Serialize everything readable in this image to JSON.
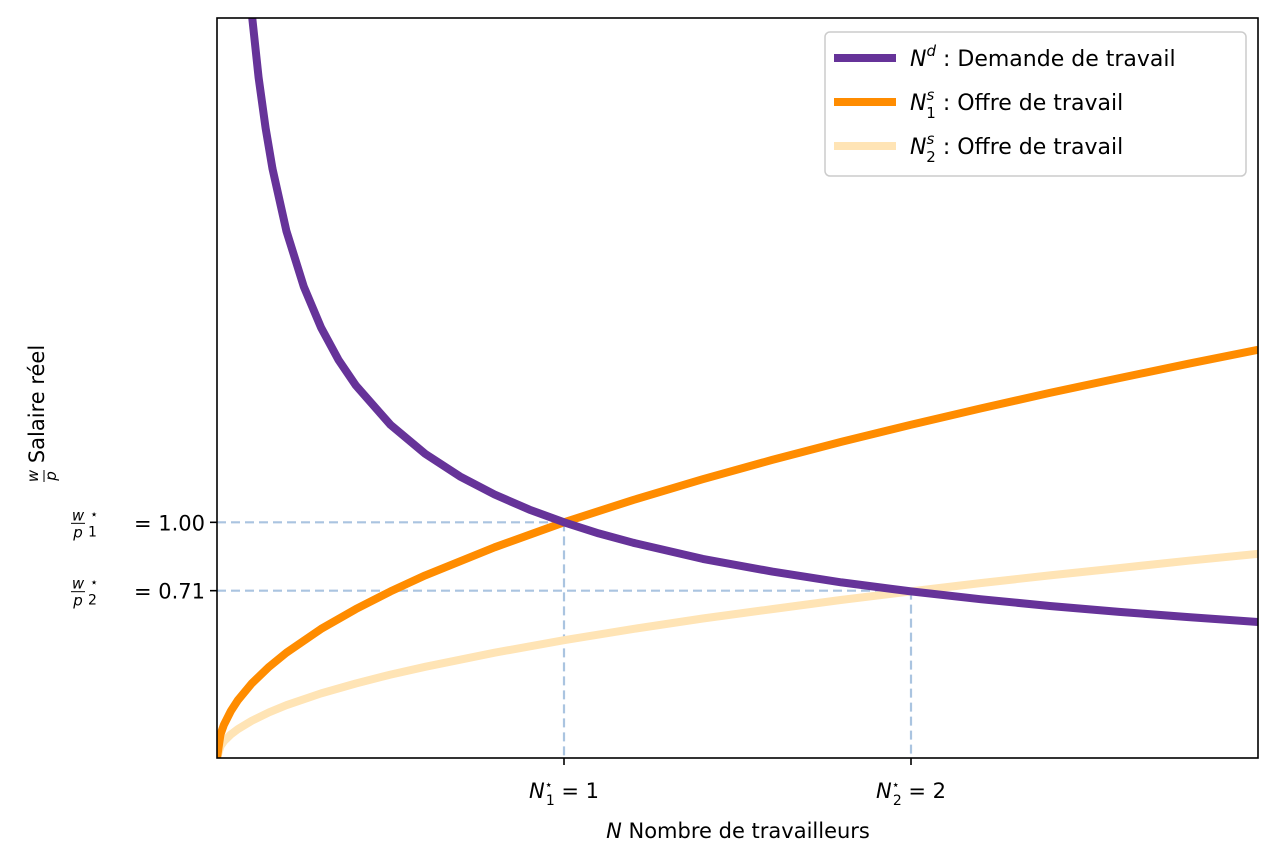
{
  "chart_data": {
    "type": "line",
    "xlabel": "Nombre de travailleurs",
    "xlabel_symbol": "N",
    "ylabel": "Salaire réel",
    "ylabel_symbol_num": "w",
    "ylabel_symbol_den": "p",
    "xlim": [
      0,
      3
    ],
    "ylim": [
      0,
      3.14
    ],
    "x_ticks": [
      {
        "value": 1,
        "symbol": "N",
        "sub": "1",
        "sup": "⋆",
        "text": " = 1"
      },
      {
        "value": 2,
        "symbol": "N",
        "sub": "2",
        "sup": "⋆",
        "text": " = 2"
      }
    ],
    "y_ticks": [
      {
        "value": 1.0,
        "num": "w",
        "den": "p",
        "sub": "1",
        "sup": "⋆",
        "text": " = 1.00"
      },
      {
        "value": 0.71,
        "num": "w",
        "den": "p",
        "sub": "2",
        "sup": "⋆",
        "text": " = 0.71"
      }
    ],
    "guides": [
      {
        "x": 1,
        "y": 1.0,
        "color": "#aac4e0"
      },
      {
        "x": 2,
        "y": 0.71,
        "color": "#aac4e0"
      }
    ],
    "legend_position": "top-right",
    "series": [
      {
        "name_symbol": "N",
        "name_sup": "d",
        "name_sub": "",
        "name_text": " : Demande de travail",
        "color": "#663399",
        "x": [
          0.1,
          0.12,
          0.14,
          0.16,
          0.2,
          0.25,
          0.3,
          0.35,
          0.4,
          0.5,
          0.6,
          0.7,
          0.8,
          0.9,
          1.0,
          1.1,
          1.2,
          1.4,
          1.6,
          1.8,
          2.0,
          2.2,
          2.4,
          2.6,
          2.8,
          3.0
        ],
        "y": [
          3.162,
          2.887,
          2.673,
          2.5,
          2.236,
          2.0,
          1.826,
          1.69,
          1.581,
          1.414,
          1.291,
          1.195,
          1.118,
          1.054,
          1.0,
          0.953,
          0.913,
          0.845,
          0.791,
          0.745,
          0.707,
          0.674,
          0.645,
          0.62,
          0.598,
          0.577
        ]
      },
      {
        "name_symbol": "N",
        "name_sup": "s",
        "name_sub": "1",
        "name_text": " : Offre de travail",
        "color": "#ff8c00",
        "x": [
          0.0,
          0.01,
          0.02,
          0.04,
          0.06,
          0.1,
          0.15,
          0.2,
          0.3,
          0.4,
          0.5,
          0.6,
          0.8,
          1.0,
          1.2,
          1.4,
          1.6,
          1.8,
          2.0,
          2.2,
          2.4,
          2.6,
          2.8,
          3.0
        ],
        "y": [
          0.0,
          0.1,
          0.141,
          0.2,
          0.245,
          0.316,
          0.387,
          0.447,
          0.548,
          0.632,
          0.707,
          0.775,
          0.894,
          1.0,
          1.095,
          1.183,
          1.265,
          1.342,
          1.414,
          1.483,
          1.549,
          1.612,
          1.673,
          1.732
        ]
      },
      {
        "name_symbol": "N",
        "name_sup": "s",
        "name_sub": "2",
        "name_text": " : Offre de travail",
        "color": "#ffe4b5",
        "x": [
          0.0,
          0.01,
          0.02,
          0.04,
          0.06,
          0.1,
          0.15,
          0.2,
          0.3,
          0.4,
          0.5,
          0.6,
          0.8,
          1.0,
          1.2,
          1.4,
          1.6,
          1.8,
          2.0,
          2.2,
          2.4,
          2.6,
          2.8,
          3.0
        ],
        "y": [
          0.0,
          0.05,
          0.071,
          0.1,
          0.122,
          0.158,
          0.194,
          0.224,
          0.274,
          0.316,
          0.354,
          0.387,
          0.447,
          0.5,
          0.548,
          0.592,
          0.632,
          0.671,
          0.707,
          0.742,
          0.775,
          0.806,
          0.837,
          0.866
        ]
      }
    ]
  }
}
